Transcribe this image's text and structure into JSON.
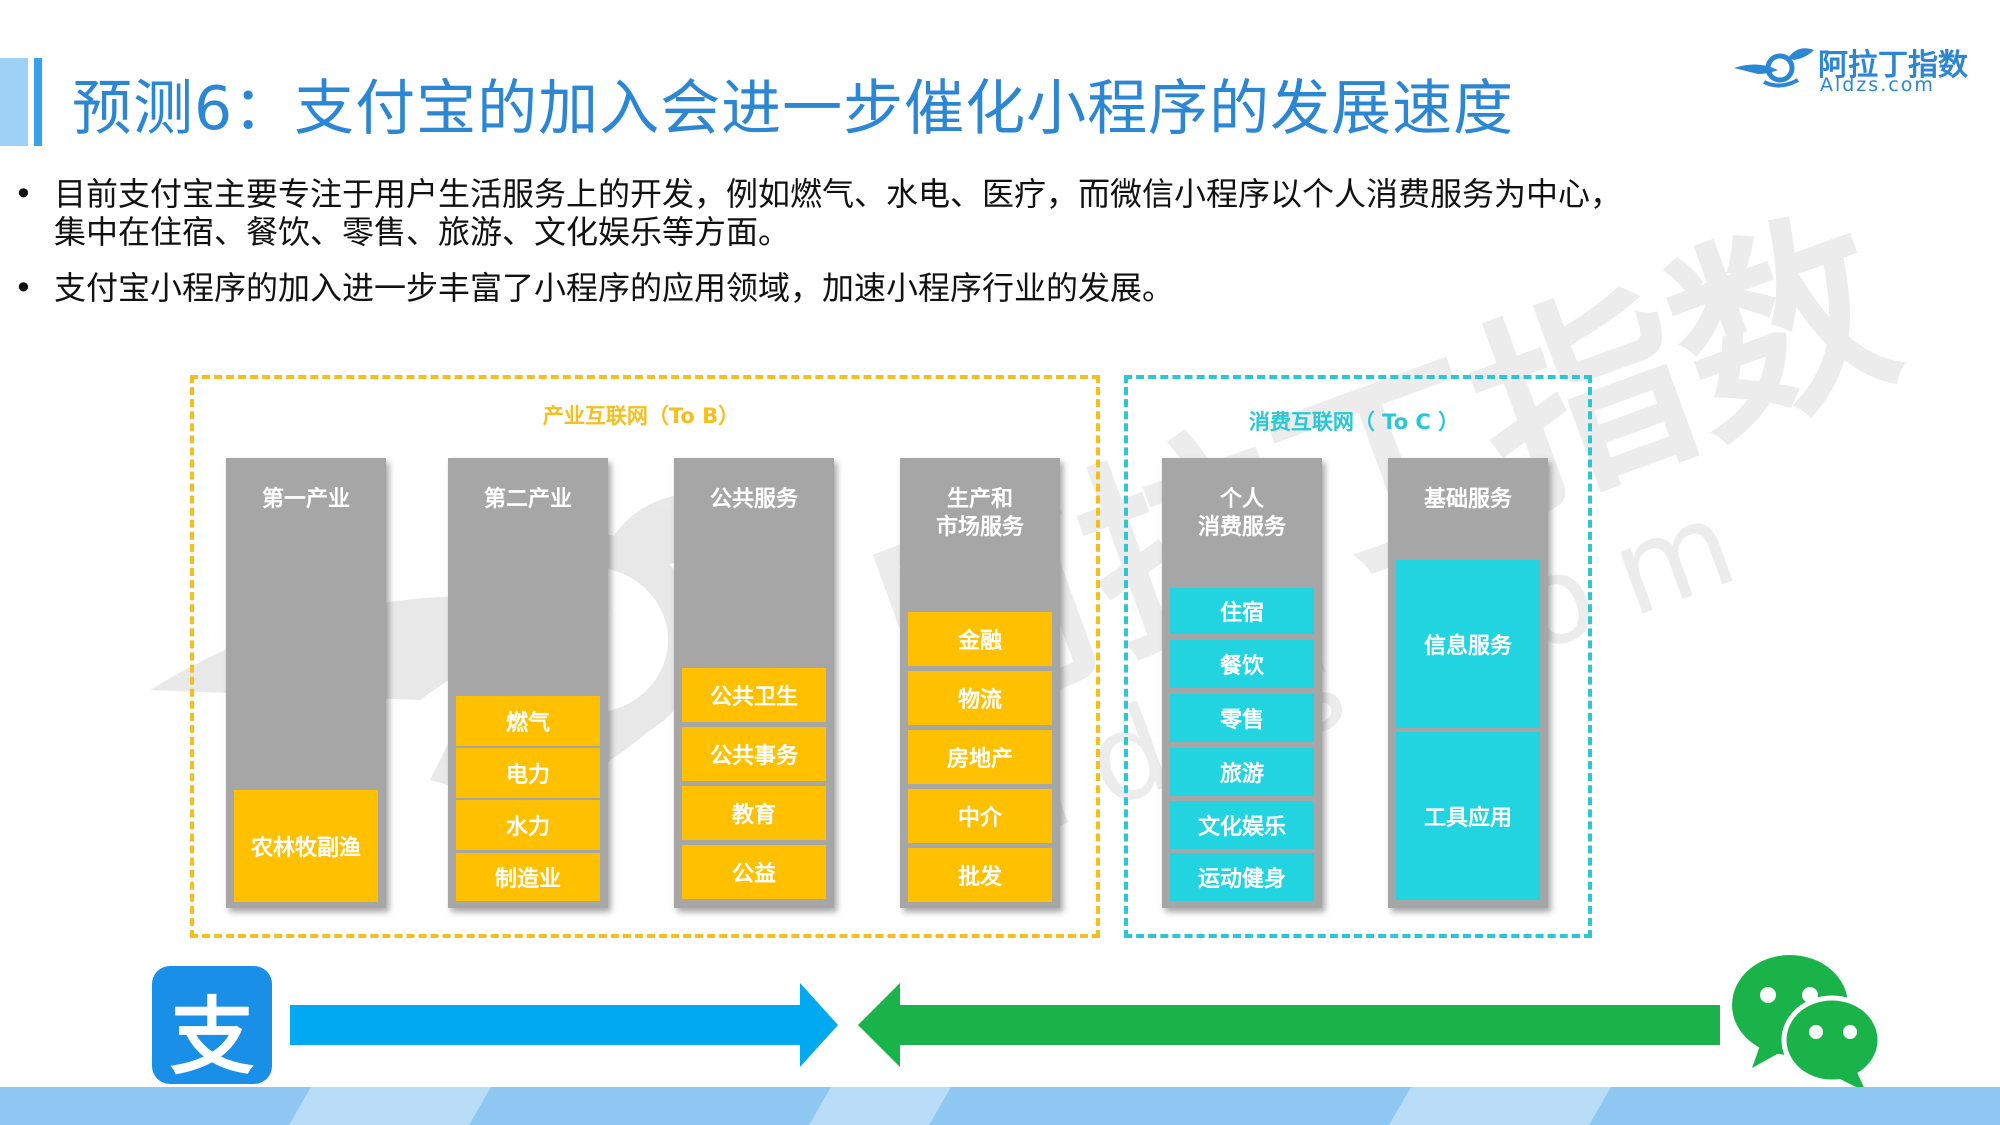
{
  "title": "预测6：支付宝的加入会进一步催化小程序的发展速度",
  "logo": {
    "brand": "阿拉丁指数",
    "url": "Aldzs.com"
  },
  "bullets": [
    {
      "dot": "•",
      "lines": [
        "目前支付宝主要专注于用户生活服务上的开发，例如燃气、水电、医疗，而微信小程序以个人消费服务为中心，",
        "集中在住宿、餐饮、零售、旅游、文化娱乐等方面。"
      ]
    },
    {
      "dot": "•",
      "lines": [
        "支付宝小程序的加入进一步丰富了小程序的应用领域，加速小程序行业的发展。"
      ]
    }
  ],
  "diagram": {
    "to_b_label": "产业互联网（To B）",
    "to_c_label": "消费互联网（ To C ）",
    "columns": [
      {
        "head": "第一产业",
        "items": [
          "农林牧副渔"
        ]
      },
      {
        "head": "第二产业",
        "items": [
          "燃气",
          "电力",
          "水力",
          "制造业"
        ]
      },
      {
        "head": "公共服务",
        "items": [
          "公共卫生",
          "公共事务",
          "教育",
          "公益"
        ]
      },
      {
        "head": "生产和\n市场服务",
        "items": [
          "金融",
          "物流",
          "房地产",
          "中介",
          "批发"
        ]
      },
      {
        "head": "个人\n消费服务",
        "items": [
          "住宿",
          "餐饮",
          "零售",
          "旅游",
          "文化娱乐",
          "运动健身"
        ]
      },
      {
        "head": "基础服务",
        "items": [
          "信息服务",
          "工具应用"
        ]
      }
    ]
  },
  "colors": {
    "to_b": "#ffc000",
    "to_c": "#22d3e0",
    "alipay_arrow": "#00a9f0",
    "wechat_arrow": "#19b34a",
    "title": "#2b86d4"
  },
  "bottom": {
    "alipay_glyph": "支",
    "alipay_icon": "alipay-icon",
    "wechat_icon": "wechat-icon"
  },
  "watermark": {
    "brand": "阿拉丁指数",
    "url": "Aldzs.com"
  }
}
